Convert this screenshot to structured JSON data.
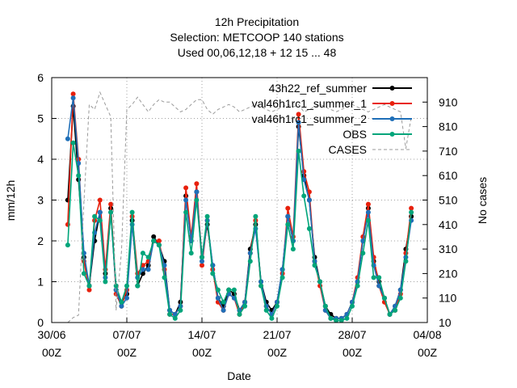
{
  "title": {
    "line1": "12h Precipitation",
    "line2": "Selection: METCOOP    140 stations",
    "line3": "Used  00,06,12,18  + 12 15 ... 48"
  },
  "chart_data": {
    "type": "line",
    "xlabel": "Date",
    "ylabel": "mm/12h",
    "y2label": "No cases",
    "xlim": [
      0,
      35
    ],
    "ylim": [
      0,
      6
    ],
    "y2lim": [
      10,
      1010
    ],
    "grid": true,
    "legend_position": "top-right",
    "x_ticks": [
      {
        "value": 0,
        "line1": "30/06",
        "line2": "00Z"
      },
      {
        "value": 7,
        "line1": "07/07",
        "line2": "00Z"
      },
      {
        "value": 14,
        "line1": "14/07",
        "line2": "00Z"
      },
      {
        "value": 21,
        "line1": "21/07",
        "line2": "00Z"
      },
      {
        "value": 28,
        "line1": "28/07",
        "line2": "00Z"
      },
      {
        "value": 35,
        "line1": "04/08",
        "line2": "00Z"
      }
    ],
    "y_ticks": [
      0,
      1,
      2,
      3,
      4,
      5,
      6
    ],
    "y2_ticks": [
      10,
      110,
      210,
      310,
      410,
      510,
      610,
      710,
      810,
      910
    ],
    "x": [
      1.5,
      2.0,
      2.5,
      3.0,
      3.5,
      4.0,
      4.5,
      5.0,
      5.5,
      6.0,
      6.5,
      7.0,
      7.5,
      8.0,
      8.5,
      9.0,
      9.5,
      10.0,
      10.5,
      11.0,
      11.5,
      12.0,
      12.5,
      13.0,
      13.5,
      14.0,
      14.5,
      15.0,
      15.5,
      16.0,
      16.5,
      17.0,
      17.5,
      18.0,
      18.5,
      19.0,
      19.5,
      20.0,
      20.5,
      21.0,
      21.5,
      22.0,
      22.5,
      23.0,
      23.5,
      24.0,
      24.5,
      25.0,
      25.5,
      26.0,
      26.5,
      27.0,
      27.5,
      28.0,
      28.5,
      29.0,
      29.5,
      30.0,
      30.5,
      31.0,
      31.5,
      32.0,
      32.5,
      33.0,
      33.5
    ],
    "series": [
      {
        "name": "43h22_ref_summer",
        "color": "#000000",
        "marker": "circle",
        "values": [
          3.0,
          5.3,
          3.5,
          1.6,
          0.9,
          2.0,
          2.7,
          1.2,
          2.8,
          0.8,
          0.5,
          0.7,
          2.5,
          0.9,
          1.2,
          1.4,
          2.1,
          1.9,
          1.5,
          0.3,
          0.2,
          0.5,
          3.1,
          2.0,
          3.2,
          1.6,
          2.4,
          1.4,
          0.6,
          0.4,
          0.8,
          0.7,
          0.3,
          0.5,
          1.8,
          2.4,
          1.0,
          0.5,
          0.3,
          0.5,
          1.3,
          2.6,
          2.0,
          4.8,
          3.6,
          3.0,
          1.6,
          1.0,
          0.4,
          0.2,
          0.1,
          0.1,
          0.2,
          0.5,
          1.0,
          2.0,
          2.8,
          1.5,
          1.0,
          0.6,
          0.2,
          0.4,
          0.8,
          1.8,
          2.6
        ]
      },
      {
        "name": "val46h1rc1_summer_1",
        "color": "#e8200c",
        "marker": "circle",
        "values": [
          2.4,
          5.6,
          4.0,
          1.5,
          0.8,
          2.5,
          3.0,
          1.3,
          2.9,
          0.7,
          0.4,
          0.8,
          2.6,
          1.2,
          1.4,
          1.5,
          2.0,
          2.0,
          1.3,
          0.2,
          0.2,
          0.4,
          3.3,
          2.1,
          3.4,
          1.4,
          2.5,
          1.3,
          0.5,
          0.3,
          0.7,
          0.6,
          0.2,
          0.5,
          1.7,
          2.5,
          0.9,
          0.4,
          0.2,
          0.5,
          1.2,
          2.8,
          2.1,
          5.1,
          3.7,
          3.2,
          1.5,
          0.9,
          0.3,
          0.1,
          0.1,
          0.1,
          0.2,
          0.5,
          1.1,
          2.1,
          2.9,
          1.6,
          0.9,
          0.5,
          0.2,
          0.3,
          0.7,
          1.7,
          2.8
        ]
      },
      {
        "name": "val46h1rc1_summer_2",
        "color": "#1f6fb8",
        "marker": "circle",
        "values": [
          4.5,
          5.5,
          3.9,
          1.7,
          0.9,
          2.2,
          2.7,
          1.1,
          2.7,
          0.8,
          0.4,
          0.6,
          2.4,
          1.1,
          1.3,
          1.3,
          2.0,
          1.9,
          1.4,
          0.3,
          0.2,
          0.4,
          3.0,
          2.0,
          3.2,
          1.5,
          2.5,
          1.4,
          0.6,
          0.3,
          0.7,
          0.6,
          0.3,
          0.5,
          1.7,
          2.3,
          1.0,
          0.4,
          0.2,
          0.5,
          1.3,
          2.6,
          2.0,
          4.9,
          3.5,
          3.0,
          1.5,
          1.0,
          0.3,
          0.1,
          0.1,
          0.1,
          0.2,
          0.5,
          1.0,
          2.0,
          2.7,
          1.4,
          0.9,
          0.6,
          0.2,
          0.4,
          0.8,
          1.6,
          2.5
        ]
      },
      {
        "name": "OBS",
        "color": "#00a57a",
        "marker": "circle",
        "values": [
          1.9,
          4.4,
          3.6,
          1.2,
          0.9,
          2.6,
          2.5,
          1.0,
          2.7,
          0.9,
          0.5,
          0.9,
          2.7,
          0.9,
          1.7,
          1.6,
          2.0,
          1.9,
          1.1,
          0.2,
          0.1,
          0.3,
          2.7,
          1.7,
          3.0,
          1.6,
          2.6,
          1.2,
          0.8,
          0.5,
          0.8,
          0.8,
          0.2,
          0.4,
          1.5,
          2.6,
          0.9,
          0.3,
          0.1,
          0.4,
          1.1,
          2.4,
          1.8,
          4.2,
          3.1,
          2.3,
          1.4,
          1.0,
          0.4,
          0.1,
          0.05,
          0.05,
          0.1,
          0.4,
          0.9,
          1.7,
          2.5,
          1.1,
          1.1,
          0.6,
          0.2,
          0.3,
          0.6,
          1.5,
          2.7
        ]
      },
      {
        "name": "CASES",
        "color": "#9a9a9a",
        "dashed": true,
        "y_axis": "right",
        "values": [
          10,
          30,
          40,
          500,
          900,
          880,
          950,
          900,
          850,
          60,
          300,
          880,
          900,
          930,
          900,
          870,
          900,
          920,
          910,
          910,
          890,
          870,
          880,
          900,
          920,
          920,
          880,
          860,
          880,
          890,
          900,
          890,
          870,
          880,
          890,
          900,
          890,
          880,
          870,
          880,
          890,
          900,
          890,
          900,
          870,
          880,
          890,
          900,
          890,
          880,
          870,
          880,
          890,
          900,
          890,
          880,
          870,
          880,
          890,
          900,
          890,
          880,
          870,
          720,
          850
        ]
      }
    ]
  }
}
